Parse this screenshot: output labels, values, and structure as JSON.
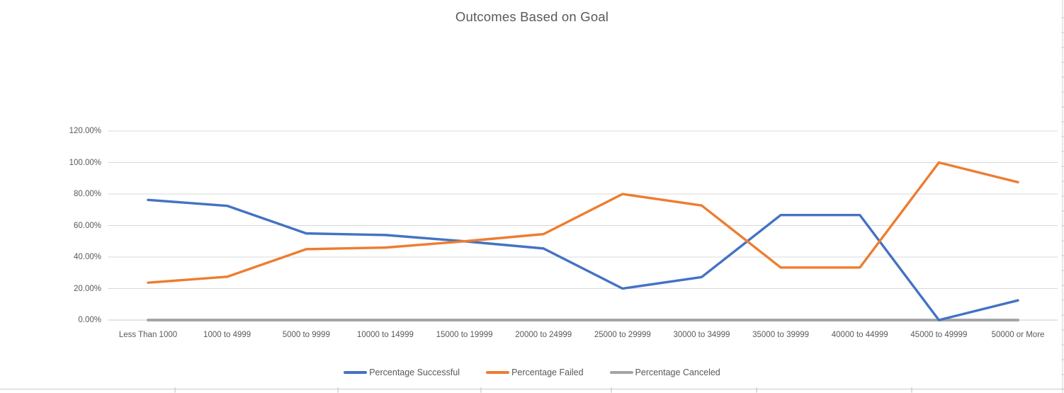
{
  "chart_data": {
    "type": "line",
    "title": "Outcomes Based on Goal",
    "categories": [
      "Less Than 1000",
      "1000 to 4999",
      "5000 to 9999",
      "10000 to 14999",
      "15000 to 19999",
      "20000 to 24999",
      "25000 to 29999",
      "30000 to 34999",
      "35000 to 39999",
      "40000 to 44999",
      "45000 to 49999",
      "50000 or More"
    ],
    "series": [
      {
        "name": "Percentage Successful",
        "color": "#4472C4",
        "values": [
          76.27,
          72.52,
          55.0,
          53.99,
          50.0,
          45.45,
          20.0,
          27.27,
          66.67,
          66.67,
          0.0,
          12.5
        ]
      },
      {
        "name": "Percentage Failed",
        "color": "#ED7D31",
        "values": [
          23.73,
          27.48,
          45.0,
          46.01,
          50.0,
          54.55,
          80.0,
          72.73,
          33.33,
          33.33,
          100.0,
          87.5
        ]
      },
      {
        "name": "Percentage Canceled",
        "color": "#A5A5A5",
        "values": [
          0.0,
          0.0,
          0.0,
          0.0,
          0.0,
          0.0,
          0.0,
          0.0,
          0.0,
          0.0,
          0.0,
          0.0
        ]
      }
    ],
    "y_axis": {
      "tick_labels": [
        "0.00%",
        "20.00%",
        "40.00%",
        "60.00%",
        "80.00%",
        "100.00%",
        "120.00%"
      ],
      "tick_values": [
        0,
        20,
        40,
        60,
        80,
        100,
        120
      ],
      "min": 0,
      "max": 120,
      "format": "percent"
    },
    "legend_position": "bottom",
    "grid": "horizontal"
  },
  "colors": {
    "title_text": "#595959",
    "axis_text": "#595959",
    "gridline": "#D9D9D9",
    "axis_line": "#C9C9C9",
    "sheet_line": "#D9D9D9",
    "sheet_tick": "#C8C8C8"
  },
  "sheet": {
    "bottom_tick_xs": [
      247,
      477,
      679,
      863,
      1068,
      1287
    ],
    "right_edge_x": 1500,
    "bottom_line_y": 549.5
  }
}
